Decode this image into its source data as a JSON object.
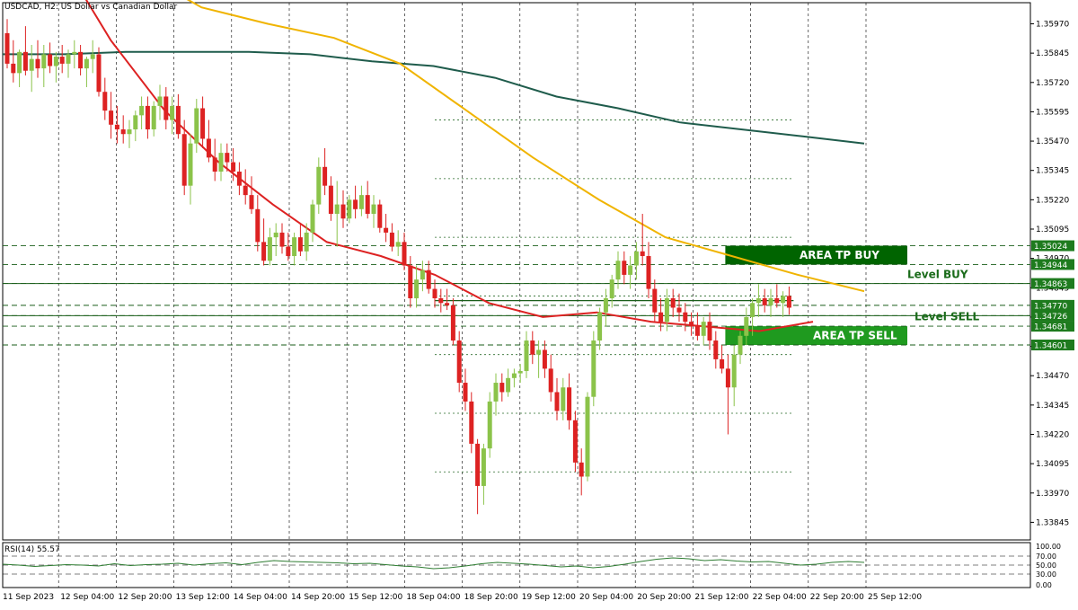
{
  "window": {
    "title": "USDCAD, H2:  US Dollar vs Canadian Dollar"
  },
  "colors": {
    "bull": "#8bc34a",
    "bear": "#dd2222",
    "ma_fast": "#dd2222",
    "ma_mid": "#f0b400",
    "ma_slow": "#1f5c4c",
    "zone_buy": "#006400",
    "zone_sell": "#1f9a1f",
    "level_label": "#1a6b1a",
    "rsi_line": "#2e7d32"
  },
  "chart_data": {
    "type": "candlestick",
    "symbol": "USDCAD",
    "timeframe": "H2",
    "ylim": [
      1.3377,
      1.3606
    ],
    "y_ticks": [
      "1.35970",
      "1.35845",
      "1.35720",
      "1.35595",
      "1.35470",
      "1.35345",
      "1.35220",
      "1.35095",
      "1.34970",
      "1.34845",
      "1.34720",
      "1.34595",
      "1.34470",
      "1.34345",
      "1.34220",
      "1.34095",
      "1.33970",
      "1.33845"
    ],
    "x_ticks": [
      "11 Sep 2023",
      "12 Sep 04:00",
      "12 Sep 20:00",
      "13 Sep 12:00",
      "14 Sep 04:00",
      "14 Sep 20:00",
      "15 Sep 12:00",
      "18 Sep 04:00",
      "18 Sep 20:00",
      "19 Sep 12:00",
      "20 Sep 04:00",
      "20 Sep 20:00",
      "21 Sep 12:00",
      "22 Sep 04:00",
      "22 Sep 20:00",
      "25 Sep 12:00"
    ],
    "price_tags": [
      {
        "value": 1.35024,
        "label": "1.35024"
      },
      {
        "value": 1.34944,
        "label": "1.34944"
      },
      {
        "value": 1.34863,
        "label": "1.34863"
      },
      {
        "value": 1.3477,
        "label": "1.34770"
      },
      {
        "value": 1.34726,
        "label": "1.34726"
      },
      {
        "value": 1.34681,
        "label": "1.34681"
      },
      {
        "value": 1.34601,
        "label": "1.34601"
      }
    ],
    "zones": [
      {
        "name": "AREA TP BUY",
        "top": 1.35024,
        "bottom": 1.34944,
        "start_index": 118
      },
      {
        "name": "AREA TP SELL",
        "top": 1.34681,
        "bottom": 1.34601,
        "start_index": 118
      }
    ],
    "levels": [
      {
        "name": "Level BUY",
        "value": 1.34863
      },
      {
        "name": "Level SELL",
        "value": 1.34726
      }
    ],
    "grid_levels": [
      1.3556,
      1.3531,
      1.3506,
      1.3481,
      1.3456,
      1.3431,
      1.3406
    ],
    "candles": [
      [
        1.3593,
        1.3599,
        1.3578,
        1.358
      ],
      [
        1.358,
        1.359,
        1.3572,
        1.3576
      ],
      [
        1.3576,
        1.3586,
        1.357,
        1.3585
      ],
      [
        1.3585,
        1.3596,
        1.3575,
        1.3577
      ],
      [
        1.3577,
        1.3588,
        1.3568,
        1.3582
      ],
      [
        1.3582,
        1.359,
        1.3574,
        1.3578
      ],
      [
        1.3578,
        1.3588,
        1.357,
        1.3584
      ],
      [
        1.3584,
        1.3589,
        1.3576,
        1.3579
      ],
      [
        1.3579,
        1.3585,
        1.3572,
        1.3583
      ],
      [
        1.3583,
        1.3588,
        1.3576,
        1.358
      ],
      [
        1.358,
        1.3586,
        1.3574,
        1.3584
      ],
      [
        1.3584,
        1.359,
        1.3578,
        1.3585
      ],
      [
        1.3585,
        1.3588,
        1.3575,
        1.3578
      ],
      [
        1.3578,
        1.3583,
        1.357,
        1.3582
      ],
      [
        1.3582,
        1.359,
        1.3576,
        1.3584
      ],
      [
        1.3584,
        1.3587,
        1.3566,
        1.3568
      ],
      [
        1.3568,
        1.3574,
        1.3556,
        1.356
      ],
      [
        1.356,
        1.3568,
        1.3548,
        1.3554
      ],
      [
        1.3554,
        1.3562,
        1.3546,
        1.3552
      ],
      [
        1.3552,
        1.3558,
        1.3546,
        1.355
      ],
      [
        1.355,
        1.3556,
        1.3544,
        1.3552
      ],
      [
        1.3552,
        1.356,
        1.3547,
        1.3558
      ],
      [
        1.3558,
        1.3566,
        1.3552,
        1.3562
      ],
      [
        1.3562,
        1.3566,
        1.3548,
        1.3552
      ],
      [
        1.3552,
        1.3564,
        1.3549,
        1.3562
      ],
      [
        1.3562,
        1.3571,
        1.3556,
        1.3566
      ],
      [
        1.3566,
        1.357,
        1.3552,
        1.3556
      ],
      [
        1.3556,
        1.3566,
        1.355,
        1.3562
      ],
      [
        1.3562,
        1.3567,
        1.3548,
        1.355
      ],
      [
        1.355,
        1.3556,
        1.3524,
        1.3528
      ],
      [
        1.3528,
        1.355,
        1.352,
        1.3546
      ],
      [
        1.3546,
        1.3565,
        1.3542,
        1.3561
      ],
      [
        1.3561,
        1.3566,
        1.3544,
        1.3548
      ],
      [
        1.3548,
        1.3556,
        1.3538,
        1.354
      ],
      [
        1.354,
        1.3548,
        1.353,
        1.3534
      ],
      [
        1.3534,
        1.3546,
        1.353,
        1.3542
      ],
      [
        1.3542,
        1.3546,
        1.3534,
        1.3538
      ],
      [
        1.3538,
        1.3544,
        1.353,
        1.3534
      ],
      [
        1.3534,
        1.3538,
        1.3524,
        1.3528
      ],
      [
        1.3528,
        1.3535,
        1.352,
        1.3524
      ],
      [
        1.3524,
        1.3532,
        1.3516,
        1.3518
      ],
      [
        1.3518,
        1.3524,
        1.35,
        1.3504
      ],
      [
        1.3504,
        1.3514,
        1.3494,
        1.3496
      ],
      [
        1.3496,
        1.351,
        1.3494,
        1.3506
      ],
      [
        1.3506,
        1.3512,
        1.3498,
        1.3508
      ],
      [
        1.3508,
        1.3512,
        1.3499,
        1.3502
      ],
      [
        1.3502,
        1.3508,
        1.3496,
        1.3498
      ],
      [
        1.3498,
        1.3508,
        1.3494,
        1.3506
      ],
      [
        1.3506,
        1.3512,
        1.3498,
        1.35
      ],
      [
        1.35,
        1.3512,
        1.3496,
        1.3508
      ],
      [
        1.3508,
        1.3522,
        1.3504,
        1.352
      ],
      [
        1.352,
        1.354,
        1.3516,
        1.3536
      ],
      [
        1.3536,
        1.3544,
        1.3524,
        1.3528
      ],
      [
        1.3528,
        1.3532,
        1.3513,
        1.3516
      ],
      [
        1.3516,
        1.353,
        1.3502,
        1.352
      ],
      [
        1.352,
        1.3526,
        1.351,
        1.3514
      ],
      [
        1.3514,
        1.3524,
        1.3512,
        1.3522
      ],
      [
        1.3522,
        1.3528,
        1.3514,
        1.3518
      ],
      [
        1.3518,
        1.3528,
        1.3515,
        1.3524
      ],
      [
        1.3524,
        1.353,
        1.3514,
        1.3516
      ],
      [
        1.3516,
        1.3524,
        1.351,
        1.352
      ],
      [
        1.352,
        1.3522,
        1.3508,
        1.351
      ],
      [
        1.351,
        1.3516,
        1.3504,
        1.3508
      ],
      [
        1.3508,
        1.3512,
        1.35,
        1.3502
      ],
      [
        1.3502,
        1.3509,
        1.3498,
        1.3504
      ],
      [
        1.3504,
        1.3508,
        1.3492,
        1.3494
      ],
      [
        1.3494,
        1.3498,
        1.3476,
        1.348
      ],
      [
        1.348,
        1.3494,
        1.3476,
        1.3488
      ],
      [
        1.3488,
        1.3496,
        1.3483,
        1.3492
      ],
      [
        1.3492,
        1.3496,
        1.3482,
        1.3484
      ],
      [
        1.3484,
        1.3488,
        1.3476,
        1.348
      ],
      [
        1.348,
        1.3484,
        1.3474,
        1.3478
      ],
      [
        1.3478,
        1.3484,
        1.3475,
        1.3477
      ],
      [
        1.3477,
        1.348,
        1.346,
        1.3462
      ],
      [
        1.3462,
        1.3466,
        1.344,
        1.3444
      ],
      [
        1.3444,
        1.345,
        1.3432,
        1.3436
      ],
      [
        1.3436,
        1.344,
        1.3414,
        1.3418
      ],
      [
        1.3418,
        1.342,
        1.3388,
        1.34
      ],
      [
        1.34,
        1.3418,
        1.3392,
        1.3416
      ],
      [
        1.3416,
        1.344,
        1.3412,
        1.3436
      ],
      [
        1.3436,
        1.3448,
        1.343,
        1.3444
      ],
      [
        1.3444,
        1.3448,
        1.3436,
        1.344
      ],
      [
        1.344,
        1.345,
        1.3438,
        1.3446
      ],
      [
        1.3446,
        1.345,
        1.3442,
        1.3448
      ],
      [
        1.3448,
        1.3452,
        1.3444,
        1.3449
      ],
      [
        1.3449,
        1.3466,
        1.3446,
        1.3462
      ],
      [
        1.3462,
        1.3466,
        1.3452,
        1.3456
      ],
      [
        1.3456,
        1.3462,
        1.3446,
        1.3458
      ],
      [
        1.3458,
        1.3462,
        1.3446,
        1.345
      ],
      [
        1.345,
        1.3456,
        1.3436,
        1.344
      ],
      [
        1.344,
        1.3446,
        1.3428,
        1.3432
      ],
      [
        1.3432,
        1.3446,
        1.3428,
        1.3442
      ],
      [
        1.3442,
        1.3448,
        1.3424,
        1.3428
      ],
      [
        1.3428,
        1.3432,
        1.3406,
        1.341
      ],
      [
        1.341,
        1.3416,
        1.3396,
        1.3404
      ],
      [
        1.3404,
        1.344,
        1.3402,
        1.3438
      ],
      [
        1.3438,
        1.3466,
        1.3434,
        1.3462
      ],
      [
        1.3462,
        1.3476,
        1.3458,
        1.3474
      ],
      [
        1.3474,
        1.3484,
        1.3468,
        1.348
      ],
      [
        1.348,
        1.349,
        1.3476,
        1.3488
      ],
      [
        1.3488,
        1.35,
        1.3484,
        1.3496
      ],
      [
        1.3496,
        1.35,
        1.3486,
        1.349
      ],
      [
        1.349,
        1.3498,
        1.3484,
        1.3494
      ],
      [
        1.3494,
        1.3504,
        1.3488,
        1.35
      ],
      [
        1.35,
        1.3516,
        1.3494,
        1.3498
      ],
      [
        1.3498,
        1.3504,
        1.348,
        1.3484
      ],
      [
        1.3484,
        1.3488,
        1.347,
        1.3474
      ],
      [
        1.3474,
        1.348,
        1.3466,
        1.347
      ],
      [
        1.347,
        1.3484,
        1.3466,
        1.348
      ],
      [
        1.348,
        1.3484,
        1.3472,
        1.3476
      ],
      [
        1.3476,
        1.3482,
        1.347,
        1.3474
      ],
      [
        1.3474,
        1.3478,
        1.3466,
        1.347
      ],
      [
        1.347,
        1.3474,
        1.3464,
        1.3468
      ],
      [
        1.3468,
        1.3474,
        1.3462,
        1.3464
      ],
      [
        1.3464,
        1.3472,
        1.346,
        1.347
      ],
      [
        1.347,
        1.3474,
        1.3458,
        1.3462
      ],
      [
        1.3462,
        1.3466,
        1.345,
        1.3454
      ],
      [
        1.3454,
        1.346,
        1.3448,
        1.345
      ],
      [
        1.345,
        1.3456,
        1.3422,
        1.3442
      ],
      [
        1.3442,
        1.346,
        1.3434,
        1.3456
      ],
      [
        1.3456,
        1.3466,
        1.3452,
        1.3464
      ],
      [
        1.3464,
        1.3476,
        1.346,
        1.3472
      ],
      [
        1.3472,
        1.348,
        1.3464,
        1.3478
      ],
      [
        1.3478,
        1.3486,
        1.3472,
        1.348
      ],
      [
        1.348,
        1.3484,
        1.3474,
        1.3477
      ],
      [
        1.3477,
        1.3484,
        1.3472,
        1.348
      ],
      [
        1.348,
        1.3486,
        1.3476,
        1.3478
      ],
      [
        1.3478,
        1.3483,
        1.3472,
        1.3481
      ],
      [
        1.3481,
        1.3485,
        1.3473,
        1.3476
      ]
    ],
    "ma_fast": [
      1.368,
      1.3628,
      1.359,
      1.356,
      1.3538,
      1.352,
      1.3504,
      1.3498,
      1.349,
      1.3478,
      1.3472,
      1.3474,
      1.347,
      1.3468,
      1.3466,
      1.347
    ],
    "ma_mid": [
      1.366,
      1.364,
      1.362,
      1.3604,
      1.3597,
      1.3591,
      1.358,
      1.356,
      1.354,
      1.3522,
      1.3506,
      1.3498,
      1.349,
      1.3483
    ],
    "ma_slow": [
      1.3584,
      1.3584,
      1.3585,
      1.3585,
      1.3585,
      1.3584,
      1.3581,
      1.3579,
      1.3574,
      1.3566,
      1.3561,
      1.3555,
      1.3552,
      1.3549,
      1.3546
    ],
    "rsi": {
      "period": 14,
      "value": 55.57,
      "ticks": [
        "100.00",
        "70.00",
        "50.00",
        "30.00",
        "0.00"
      ],
      "values": [
        52,
        50,
        47,
        49,
        51,
        50,
        48,
        53,
        49,
        51,
        52,
        54,
        50,
        53,
        55,
        51,
        56,
        60,
        58,
        57,
        56,
        55,
        53,
        54,
        51,
        48,
        46,
        42,
        44,
        48,
        53,
        56,
        54,
        52,
        49,
        46,
        48,
        44,
        47,
        52,
        58,
        63,
        66,
        64,
        60,
        62,
        59,
        57,
        58,
        54,
        50,
        52,
        56,
        58,
        56
      ]
    }
  },
  "labels": {
    "rsi_title": "RSI(14) 55.57"
  }
}
